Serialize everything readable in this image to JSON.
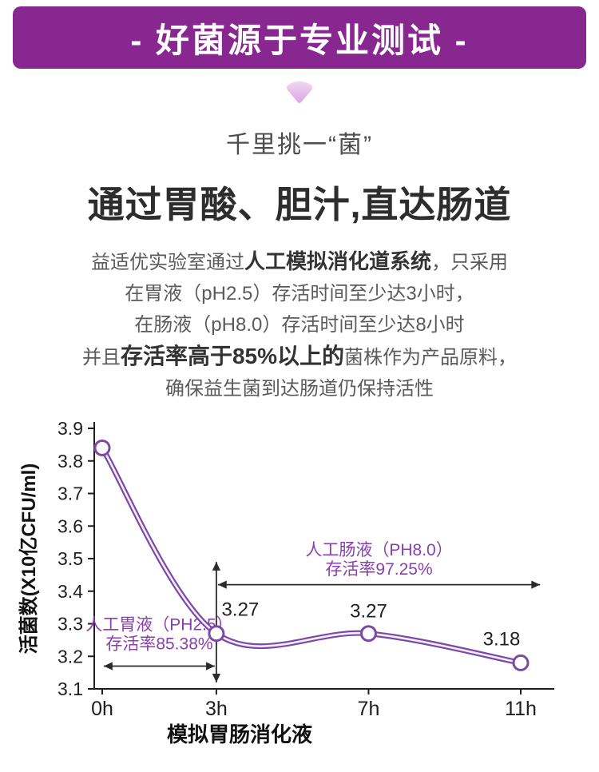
{
  "banner": {
    "text": "- 好菌源于专业测试 -",
    "bg_color": "#87278f"
  },
  "divider_icon": "heart-down",
  "intro": {
    "subtitle": "千里挑一“菌”",
    "title": "通过胃酸、胆汁,直达肠道",
    "paragraph": {
      "l1a": "益适优实验室通过",
      "l1b": "人工模拟消化道系统",
      "l1c": "，只采用",
      "l2": "在胃液（pH2.5）存活时间至少达3小时，",
      "l3": "在肠液（pH8.0）存活时间至少达8小时",
      "l4a": "并且",
      "l4b": "存活率高于85%以上的",
      "l4c": "菌株作为产品原料，",
      "l5": "确保益生菌到达肠道仍保持活性"
    }
  },
  "chart_data": {
    "type": "line",
    "x": [
      "0h",
      "3h",
      "7h",
      "11h"
    ],
    "hours": [
      0,
      3,
      7,
      11
    ],
    "values": [
      3.84,
      3.27,
      3.27,
      3.18
    ],
    "point_labels": [
      "",
      "3.27",
      "3.27",
      "3.18"
    ],
    "ylabel": "活菌数(X10亿CFU/ml)",
    "xlabel": "模拟胃肠消化液",
    "ylim": [
      3.1,
      3.9
    ],
    "yticks": [
      3.9,
      3.8,
      3.7,
      3.6,
      3.5,
      3.4,
      3.3,
      3.2,
      3.1
    ],
    "grid": false,
    "line_color": "#7a4aa5",
    "line_inner_color": "#f4eefb",
    "marker_fill": "#ffffff",
    "axis_color": "#1f1f1f",
    "annotation_color": "#8a3fae",
    "arrow_color": "#2b2b2b",
    "annotations": [
      {
        "line1": "人工胃液（PH2.5）",
        "line2": "存活率85.38%",
        "from_hour": 0,
        "to_hour": 3,
        "arrow_y": 3.17,
        "text_y": 3.28
      },
      {
        "line1": "人工肠液（PH8.0）",
        "line2": "存活率97.25%",
        "from_hour": 3,
        "to_hour": 11.55,
        "arrow_y": 3.42,
        "text_y": 3.51
      }
    ],
    "vertical_arrow": {
      "at_hour": 3,
      "from_value": 3.12,
      "to_value": 3.49
    }
  }
}
